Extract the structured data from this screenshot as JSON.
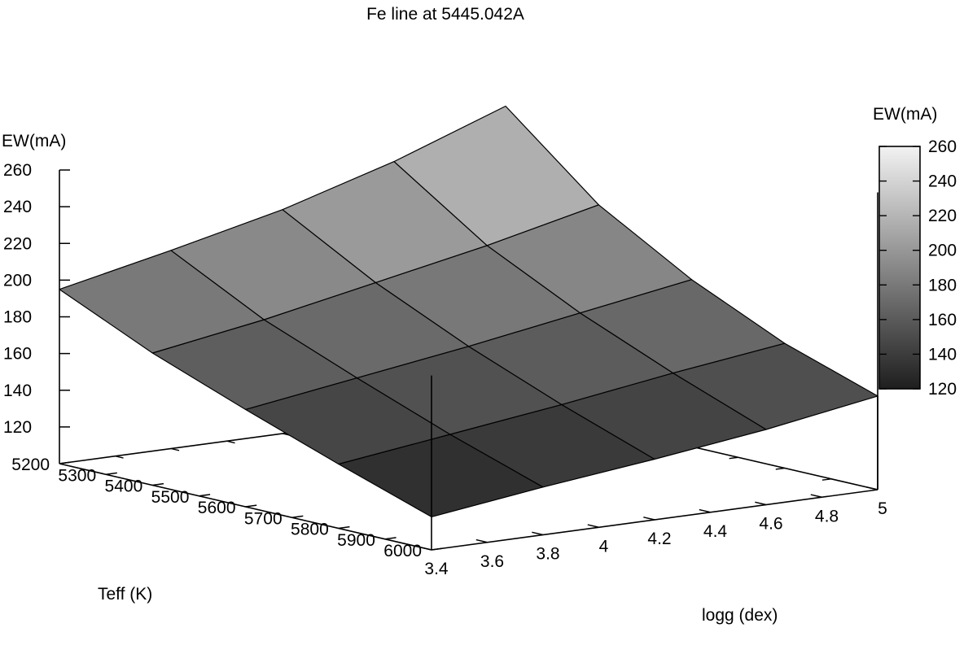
{
  "chart_data": {
    "type": "surface3d",
    "title": "Fe line at 5445.042A",
    "xlabel": "Teff (K)",
    "ylabel": "logg (dex)",
    "zlabel": "EW(mA)",
    "colorbar_label": "EW(mA)",
    "x_ticks": [
      "5200",
      "5300",
      "5400",
      "5500",
      "5600",
      "5700",
      "5800",
      "5900",
      "6000"
    ],
    "y_ticks": [
      "3.4",
      "3.6",
      "3.8",
      "4",
      "4.2",
      "4.4",
      "4.6",
      "4.8",
      "5"
    ],
    "z_ticks": [
      "120",
      "140",
      "160",
      "180",
      "200",
      "220",
      "240",
      "260"
    ],
    "colorbar_ticks": [
      "120",
      "140",
      "160",
      "180",
      "200",
      "220",
      "240",
      "260"
    ],
    "xlim": [
      5200,
      6000
    ],
    "ylim": [
      3.4,
      5.0
    ],
    "zlim": [
      100,
      260
    ],
    "grid_teff": [
      5200,
      5400,
      5600,
      5800,
      6000
    ],
    "grid_logg": [
      3.4,
      3.8,
      4.2,
      4.6,
      5.0
    ],
    "ew_values": [
      [
        195,
        208,
        222,
        240,
        262
      ],
      [
        172,
        182,
        194,
        206,
        220
      ],
      [
        153,
        162,
        171,
        181,
        191
      ],
      [
        135,
        143,
        151,
        160,
        168
      ],
      [
        118,
        126,
        133,
        141,
        151
      ]
    ],
    "colormap": "grayscale",
    "color_low": "#1e1e1e",
    "color_high": "#f2f2f2",
    "legend_placement": "right"
  }
}
